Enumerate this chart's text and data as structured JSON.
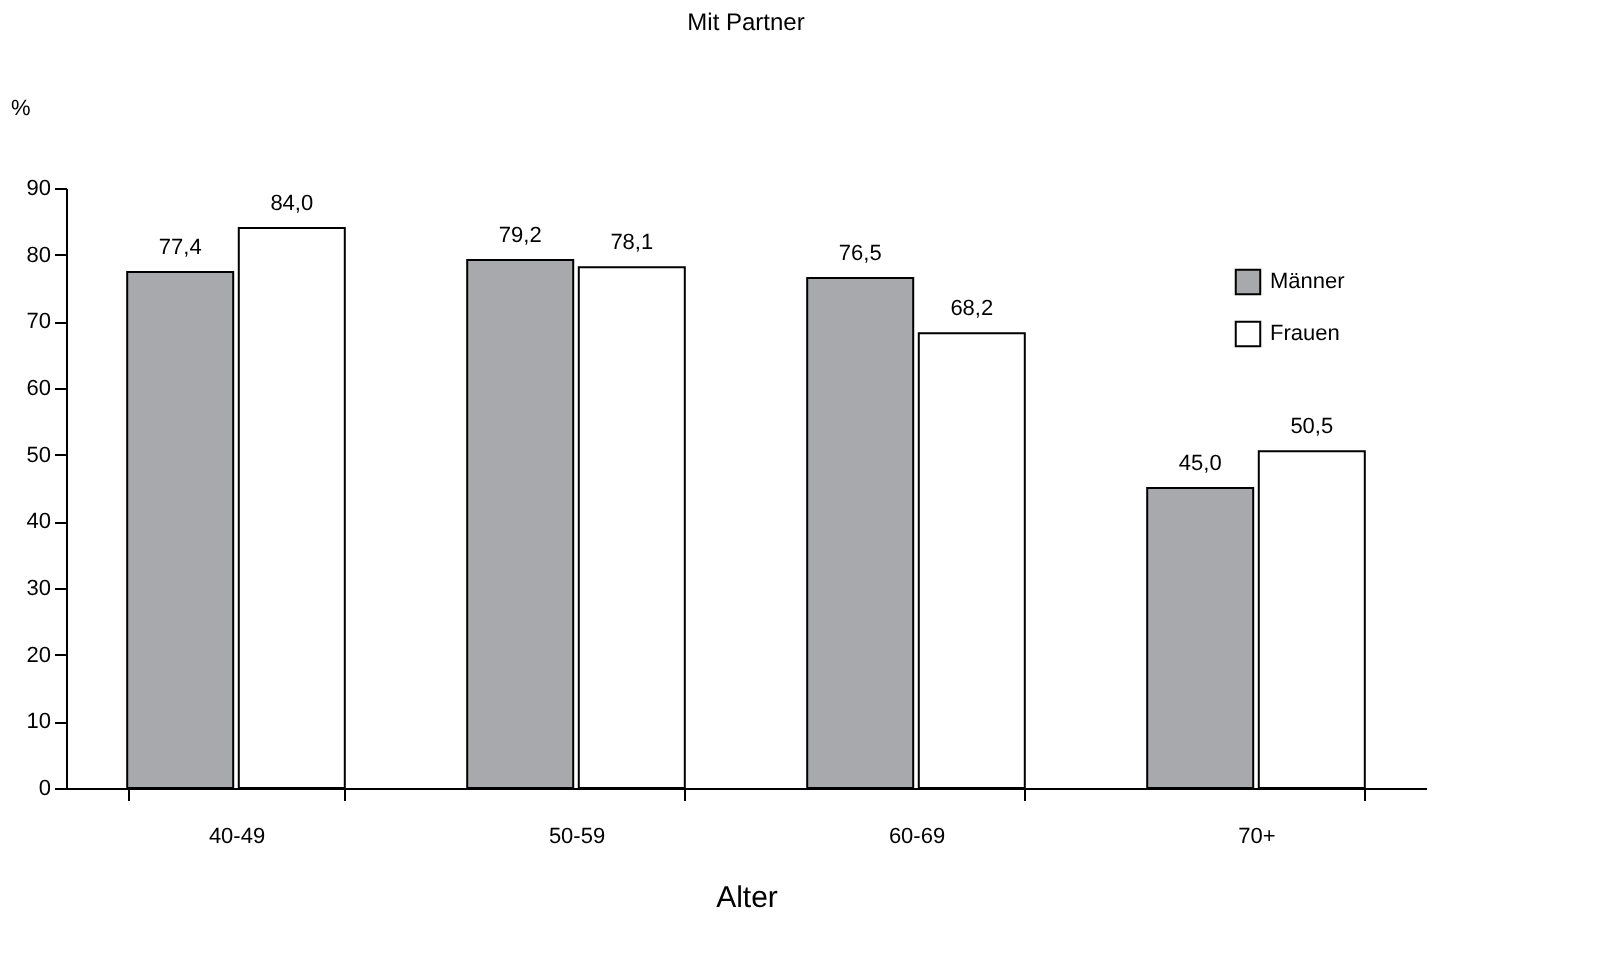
{
  "chart_data": {
    "type": "bar",
    "title": "Mit Partner",
    "xlabel": "Alter",
    "ylabel": "%",
    "categories": [
      "40-49",
      "50-59",
      "60-69",
      "70+"
    ],
    "series": [
      {
        "name": "Männer",
        "color": "#a7a9ac",
        "values": [
          77.4,
          79.2,
          76.5,
          45.0
        ],
        "value_labels": [
          "77,4",
          "79,2",
          "76,5",
          "45,0"
        ]
      },
      {
        "name": "Frauen",
        "color": "#ffffff",
        "values": [
          84.0,
          78.1,
          68.2,
          50.5
        ],
        "value_labels": [
          "84,0",
          "78,1",
          "68,2",
          "50,5"
        ]
      }
    ],
    "ylim": [
      0,
      90
    ],
    "yticks": [
      0,
      10,
      20,
      30,
      40,
      50,
      60,
      70,
      80,
      90
    ],
    "grid": false,
    "legend": "top right"
  }
}
